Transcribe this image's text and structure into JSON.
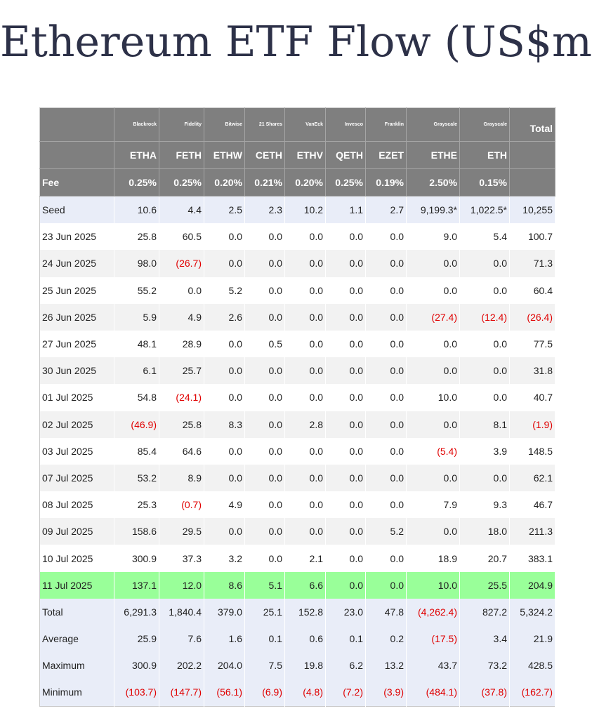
{
  "title": "Ethereum ETF Flow (US$m)",
  "issuers": [
    "Blackrock",
    "Fidelity",
    "Bitwise",
    "21 Shares",
    "VanEck",
    "Invesco",
    "Franklin",
    "Grayscale",
    "Grayscale"
  ],
  "total_label": "Total",
  "tickers": [
    "ETHA",
    "FETH",
    "ETHW",
    "CETH",
    "ETHV",
    "QETH",
    "EZET",
    "ETHE",
    "ETH"
  ],
  "fee_label": "Fee",
  "fees": [
    "0.25%",
    "0.25%",
    "0.20%",
    "0.21%",
    "0.20%",
    "0.25%",
    "0.19%",
    "2.50%",
    "0.15%"
  ],
  "rows": [
    {
      "label": "Seed",
      "values": [
        "10.6",
        "4.4",
        "2.5",
        "2.3",
        "10.2",
        "1.1",
        "2.7",
        "9,199.3*",
        "1,022.5*",
        "10,255"
      ],
      "style": "seed"
    },
    {
      "label": "23 Jun 2025",
      "values": [
        "25.8",
        "60.5",
        "0.0",
        "0.0",
        "0.0",
        "0.0",
        "0.0",
        "9.0",
        "5.4",
        "100.7"
      ],
      "style": "plain"
    },
    {
      "label": "24 Jun 2025",
      "values": [
        "98.0",
        "(26.7)",
        "0.0",
        "0.0",
        "0.0",
        "0.0",
        "0.0",
        "0.0",
        "0.0",
        "71.3"
      ],
      "style": "alt"
    },
    {
      "label": "25 Jun 2025",
      "values": [
        "55.2",
        "0.0",
        "5.2",
        "0.0",
        "0.0",
        "0.0",
        "0.0",
        "0.0",
        "0.0",
        "60.4"
      ],
      "style": "plain"
    },
    {
      "label": "26 Jun 2025",
      "values": [
        "5.9",
        "4.9",
        "2.6",
        "0.0",
        "0.0",
        "0.0",
        "0.0",
        "(27.4)",
        "(12.4)",
        "(26.4)"
      ],
      "style": "alt"
    },
    {
      "label": "27 Jun 2025",
      "values": [
        "48.1",
        "28.9",
        "0.0",
        "0.5",
        "0.0",
        "0.0",
        "0.0",
        "0.0",
        "0.0",
        "77.5"
      ],
      "style": "plain"
    },
    {
      "label": "30 Jun 2025",
      "values": [
        "6.1",
        "25.7",
        "0.0",
        "0.0",
        "0.0",
        "0.0",
        "0.0",
        "0.0",
        "0.0",
        "31.8"
      ],
      "style": "alt"
    },
    {
      "label": "01 Jul 2025",
      "values": [
        "54.8",
        "(24.1)",
        "0.0",
        "0.0",
        "0.0",
        "0.0",
        "0.0",
        "10.0",
        "0.0",
        "40.7"
      ],
      "style": "plain"
    },
    {
      "label": "02 Jul 2025",
      "values": [
        "(46.9)",
        "25.8",
        "8.3",
        "0.0",
        "2.8",
        "0.0",
        "0.0",
        "0.0",
        "8.1",
        "(1.9)"
      ],
      "style": "alt"
    },
    {
      "label": "03 Jul 2025",
      "values": [
        "85.4",
        "64.6",
        "0.0",
        "0.0",
        "0.0",
        "0.0",
        "0.0",
        "(5.4)",
        "3.9",
        "148.5"
      ],
      "style": "plain"
    },
    {
      "label": "07 Jul 2025",
      "values": [
        "53.2",
        "8.9",
        "0.0",
        "0.0",
        "0.0",
        "0.0",
        "0.0",
        "0.0",
        "0.0",
        "62.1"
      ],
      "style": "alt"
    },
    {
      "label": "08 Jul 2025",
      "values": [
        "25.3",
        "(0.7)",
        "4.9",
        "0.0",
        "0.0",
        "0.0",
        "0.0",
        "7.9",
        "9.3",
        "46.7"
      ],
      "style": "plain"
    },
    {
      "label": "09 Jul 2025",
      "values": [
        "158.6",
        "29.5",
        "0.0",
        "0.0",
        "0.0",
        "0.0",
        "5.2",
        "0.0",
        "18.0",
        "211.3"
      ],
      "style": "alt"
    },
    {
      "label": "10 Jul 2025",
      "values": [
        "300.9",
        "37.3",
        "3.2",
        "0.0",
        "2.1",
        "0.0",
        "0.0",
        "18.9",
        "20.7",
        "383.1"
      ],
      "style": "plain"
    },
    {
      "label": "11 Jul 2025",
      "values": [
        "137.1",
        "12.0",
        "8.6",
        "5.1",
        "6.6",
        "0.0",
        "0.0",
        "10.0",
        "25.5",
        "204.9"
      ],
      "style": "highlight"
    },
    {
      "label": "Total",
      "values": [
        "6,291.3",
        "1,840.4",
        "379.0",
        "25.1",
        "152.8",
        "23.0",
        "47.8",
        "(4,262.4)",
        "827.2",
        "5,324.2"
      ],
      "style": "summary"
    },
    {
      "label": "Average",
      "values": [
        "25.9",
        "7.6",
        "1.6",
        "0.1",
        "0.6",
        "0.1",
        "0.2",
        "(17.5)",
        "3.4",
        "21.9"
      ],
      "style": "summary"
    },
    {
      "label": "Maximum",
      "values": [
        "300.9",
        "202.2",
        "204.0",
        "7.5",
        "19.8",
        "6.2",
        "13.2",
        "43.7",
        "73.2",
        "428.5"
      ],
      "style": "summary"
    },
    {
      "label": "Minimum",
      "values": [
        "(103.7)",
        "(147.7)",
        "(56.1)",
        "(6.9)",
        "(4.8)",
        "(7.2)",
        "(3.9)",
        "(484.1)",
        "(37.8)",
        "(162.7)"
      ],
      "style": "summary"
    }
  ],
  "colors": {
    "header_bg": "#7f7f7f",
    "seed_bg": "#e9edf8",
    "summary_bg": "#e9edf8",
    "highlight_bg": "#99ff99",
    "alt_row_bg": "#f2f2f2",
    "negative_text": "#e00000",
    "title_text": "#2d3148"
  }
}
